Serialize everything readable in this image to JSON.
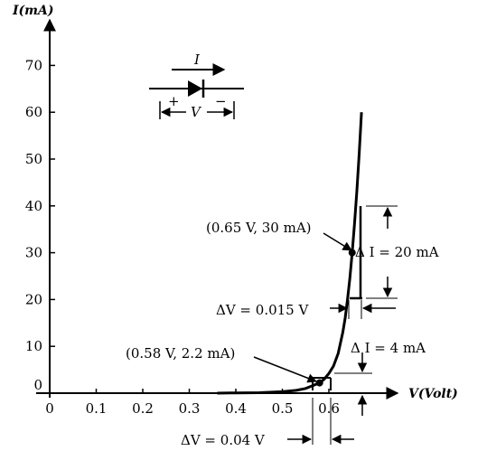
{
  "chart_data": {
    "type": "line",
    "xlabel": "V(Volt)",
    "ylabel": "I(mA)",
    "xlim": [
      0,
      0.7
    ],
    "ylim": [
      0,
      75
    ],
    "x_ticks": [
      "0",
      "0.1",
      "0.2",
      "0.3",
      "0.4",
      "0.5",
      "0.6"
    ],
    "y_ticks": [
      "0",
      "10",
      "20",
      "30",
      "40",
      "50",
      "60",
      "70"
    ],
    "series": [
      {
        "x": [
          0.36,
          0.4,
          0.45,
          0.5,
          0.53,
          0.55,
          0.56,
          0.57,
          0.58,
          0.59,
          0.6,
          0.61,
          0.62,
          0.63,
          0.635,
          0.64,
          0.645,
          0.65,
          0.655,
          0.66,
          0.665,
          0.67
        ],
        "y": [
          0,
          0.05,
          0.1,
          0.3,
          0.6,
          1.0,
          1.4,
          1.8,
          2.2,
          3.0,
          4.2,
          5.8,
          8.5,
          13,
          16,
          20,
          24.5,
          30,
          36,
          43,
          51,
          60
        ]
      }
    ],
    "points": [
      {
        "x": 0.58,
        "y": 2.2,
        "label": "(0.58 V, 2.2 mA)"
      },
      {
        "x": 0.65,
        "y": 30,
        "label": "(0.65 V, 30 mA)"
      }
    ],
    "annotations": {
      "delta_i_upper": "Δ I = 20 mA",
      "delta_v_upper": "ΔV = 0.015 V",
      "delta_i_lower": "Δ I = 4 mA",
      "delta_v_lower": "ΔV = 0.04 V"
    },
    "diode_symbol": {
      "current_label": "I",
      "voltage_label": "V",
      "plus": "+",
      "minus": "−"
    }
  }
}
